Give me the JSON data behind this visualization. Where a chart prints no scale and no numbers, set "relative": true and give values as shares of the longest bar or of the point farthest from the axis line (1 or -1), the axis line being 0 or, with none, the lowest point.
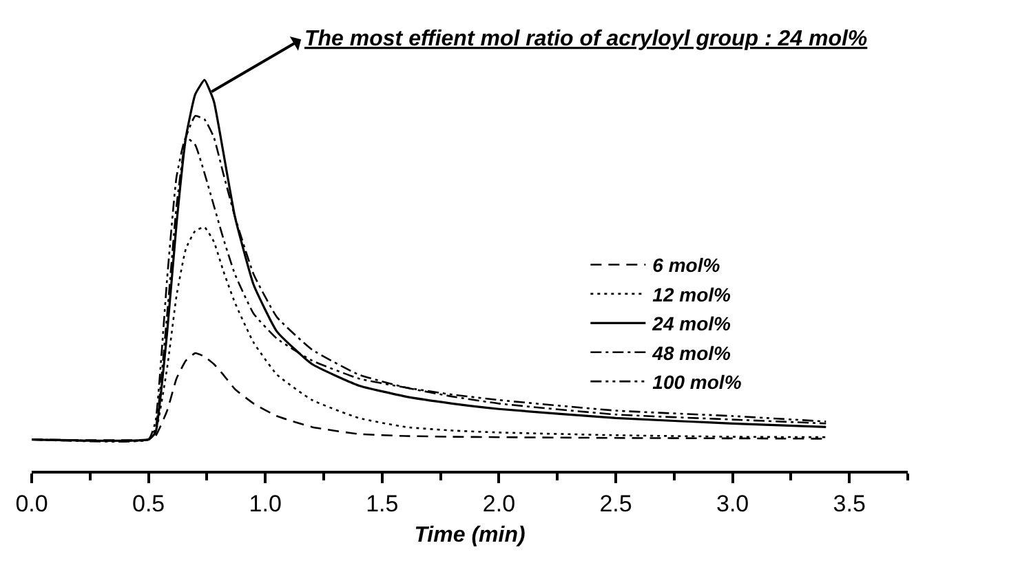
{
  "chart_data": {
    "type": "line",
    "relative": true,
    "xlabel": "Time (min)",
    "x": [
      0,
      0.5,
      0.53,
      0.58,
      0.62,
      0.66,
      0.7,
      0.74,
      0.78,
      0.82,
      0.87,
      0.95,
      1.05,
      1.2,
      1.4,
      1.6,
      1.8,
      2.0,
      2.5,
      3.0,
      3.4
    ],
    "xlim": [
      0,
      3.75
    ],
    "xticks": [
      {
        "value": 0,
        "label": "0.0"
      },
      {
        "value": 0.25,
        "label": null
      },
      {
        "value": 0.5,
        "label": "0.5"
      },
      {
        "value": 0.75,
        "label": null
      },
      {
        "value": 1,
        "label": "1.0"
      },
      {
        "value": 1.25,
        "label": null
      },
      {
        "value": 1.5,
        "label": "1.5"
      },
      {
        "value": 1.75,
        "label": null
      },
      {
        "value": 2,
        "label": "2.0"
      },
      {
        "value": 2.25,
        "label": null
      },
      {
        "value": 2.5,
        "label": "2.5"
      },
      {
        "value": 2.75,
        "label": null
      },
      {
        "value": 3,
        "label": "3.0"
      },
      {
        "value": 3.25,
        "label": null
      },
      {
        "value": 3.5,
        "label": "3.5"
      },
      {
        "value": 3.75,
        "label": null
      }
    ],
    "tick_labels": "x",
    "grid": false,
    "legend": "right",
    "marker": "none",
    "series": [
      {
        "name": "6 mol%",
        "color": "#000000",
        "line_style": "dashed",
        "values": [
          0.08,
          0.08,
          0.089,
          0.154,
          0.236,
          0.282,
          0.301,
          0.292,
          0.273,
          0.246,
          0.209,
          0.172,
          0.14,
          0.112,
          0.094,
          0.089,
          0.087,
          0.086,
          0.084,
          0.083,
          0.082
        ]
      },
      {
        "name": "12 mol%",
        "color": "#000000",
        "line_style": "dotted",
        "values": [
          0.08,
          0.08,
          0.098,
          0.264,
          0.448,
          0.568,
          0.614,
          0.623,
          0.586,
          0.512,
          0.43,
          0.328,
          0.246,
          0.181,
          0.135,
          0.112,
          0.103,
          0.098,
          0.091,
          0.087,
          0.086
        ]
      },
      {
        "name": "24 mol%",
        "color": "#000000",
        "line_style": "solid",
        "values": [
          0.08,
          0.08,
          0.098,
          0.356,
          0.632,
          0.853,
          0.963,
          1.0,
          0.945,
          0.816,
          0.65,
          0.476,
          0.356,
          0.273,
          0.218,
          0.19,
          0.172,
          0.158,
          0.135,
          0.121,
          0.112
        ]
      },
      {
        "name": "48 mol%",
        "color": "#000000",
        "line_style": "dashdot",
        "values": [
          0.08,
          0.08,
          0.108,
          0.402,
          0.678,
          0.853,
          0.908,
          0.899,
          0.853,
          0.761,
          0.65,
          0.503,
          0.393,
          0.31,
          0.246,
          0.213,
          0.19,
          0.172,
          0.144,
          0.131,
          0.121
        ]
      },
      {
        "name": "100 mol%",
        "color": "#000000",
        "line_style": "dashdotdot",
        "values": [
          0.08,
          0.08,
          0.126,
          0.494,
          0.752,
          0.853,
          0.834,
          0.761,
          0.678,
          0.595,
          0.503,
          0.402,
          0.338,
          0.282,
          0.236,
          0.213,
          0.195,
          0.181,
          0.154,
          0.14,
          0.126
        ]
      }
    ],
    "annotations": [
      {
        "text": "The most effient mol ratio of acryloyl group : 24 mol%",
        "x": 0.77,
        "y": 0.97
      }
    ]
  }
}
